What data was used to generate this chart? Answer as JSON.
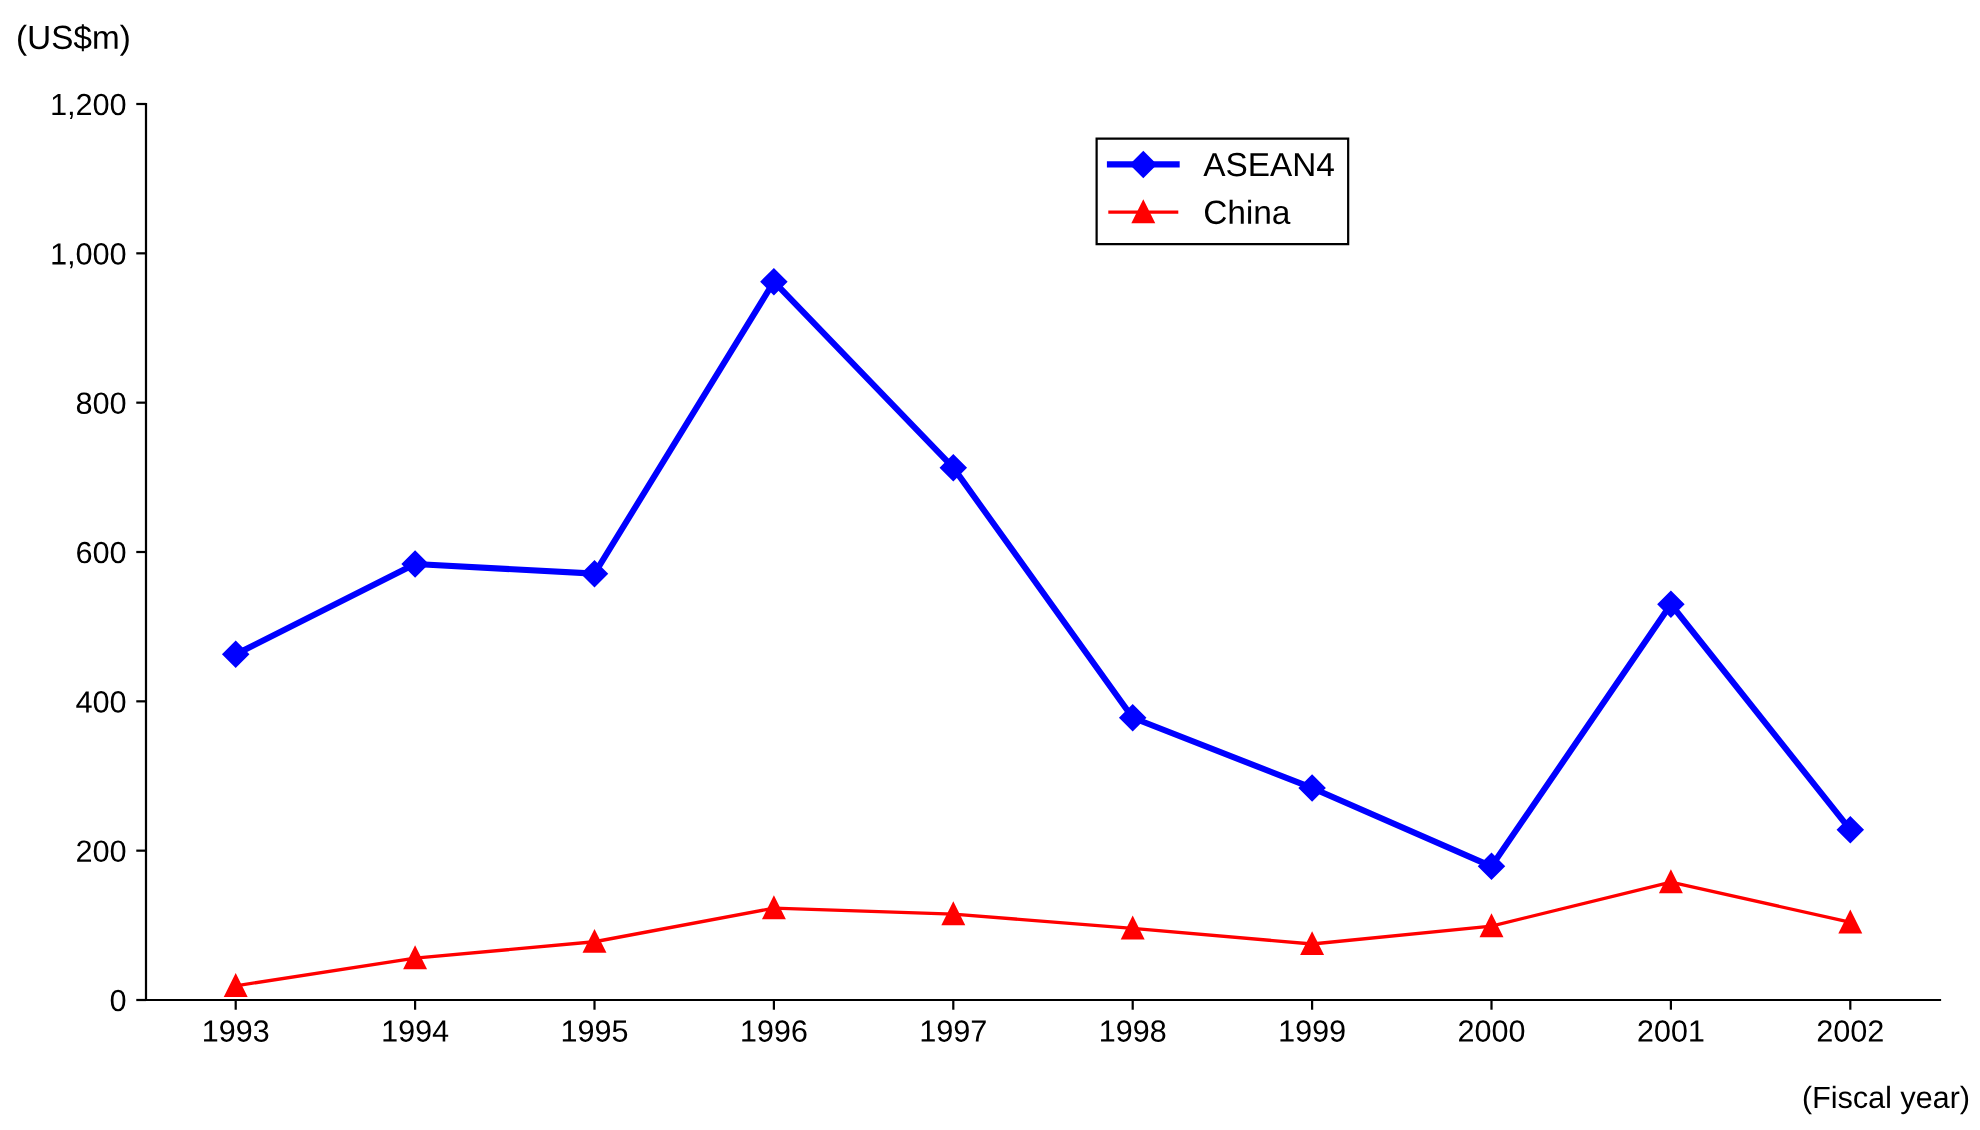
{
  "chart_data": {
    "type": "line",
    "ylabel": "(US$m)",
    "xlabel": "(Fiscal year)",
    "categories": [
      "1993",
      "1994",
      "1995",
      "1996",
      "1997",
      "1998",
      "1999",
      "2000",
      "2001",
      "2002"
    ],
    "series": [
      {
        "name": "ASEAN4",
        "color": "#0000ff",
        "marker": "diamond",
        "values": [
          463,
          584,
          571,
          962,
          713,
          378,
          284,
          179,
          530,
          228
        ]
      },
      {
        "name": "China",
        "color": "#ff0000",
        "marker": "triangle",
        "values": [
          19,
          56,
          78,
          123,
          115,
          96,
          75,
          99,
          158,
          104
        ]
      }
    ],
    "ylim": [
      0,
      1200
    ],
    "yticks": [
      {
        "value": 0,
        "label": "0"
      },
      {
        "value": 200,
        "label": "200"
      },
      {
        "value": 400,
        "label": "400"
      },
      {
        "value": 600,
        "label": "600"
      },
      {
        "value": 800,
        "label": "800"
      },
      {
        "value": 1000,
        "label": "1,000"
      },
      {
        "value": 1200,
        "label": "1,200"
      }
    ],
    "grid": false,
    "legend": "top"
  }
}
